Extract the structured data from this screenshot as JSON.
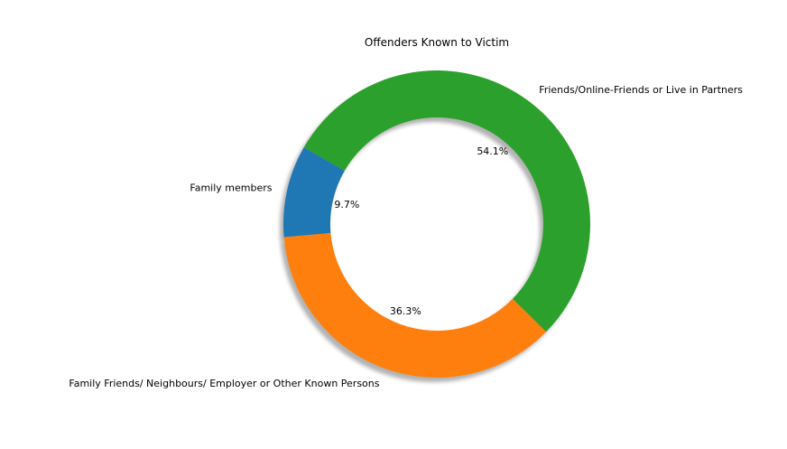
{
  "chart_data": {
    "type": "pie",
    "style": "donut",
    "title": "Offenders Known to Victim",
    "start_angle_deg": 150,
    "direction": "counterclockwise",
    "shadow": true,
    "slices": [
      {
        "label": "Family members",
        "pct_label": "9.7%",
        "value": 9.7,
        "color": "#1f77b4"
      },
      {
        "label": "Family Friends/ Neighbours/ Employer or Other Known Persons",
        "pct_label": "36.3%",
        "value": 36.3,
        "color": "#ff7f0e"
      },
      {
        "label": "Friends/Online-Friends or Live in Partners",
        "pct_label": "54.1%",
        "value": 54.1,
        "color": "#2ca02c"
      }
    ]
  }
}
